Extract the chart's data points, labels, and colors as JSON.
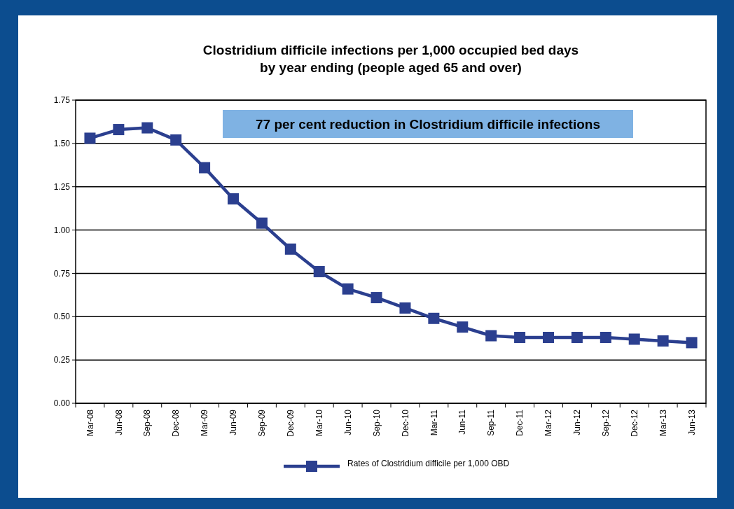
{
  "chart_data": {
    "type": "line",
    "title": "Clostridium difficile infections per 1,000 occupied bed days",
    "subtitle": "by year ending (people aged 65 and over)",
    "categories": [
      "Mar-08",
      "Jun-08",
      "Sep-08",
      "Dec-08",
      "Mar-09",
      "Jun-09",
      "Sep-09",
      "Dec-09",
      "Mar-10",
      "Jun-10",
      "Sep-10",
      "Dec-10",
      "Mar-11",
      "Jun-11",
      "Sep-11",
      "Dec-11",
      "Mar-12",
      "Jun-12",
      "Sep-12",
      "Dec-12",
      "Mar-13",
      "Jun-13"
    ],
    "series": [
      {
        "name": "Rates of Clostridium difficile per 1,000 OBD",
        "color": "#2b3f8f",
        "values": [
          1.53,
          1.58,
          1.59,
          1.52,
          1.36,
          1.18,
          1.04,
          0.89,
          0.76,
          0.66,
          0.61,
          0.55,
          0.49,
          0.44,
          0.39,
          0.38,
          0.38,
          0.38,
          0.38,
          0.37,
          0.36,
          0.35
        ]
      }
    ],
    "ylim": [
      0,
      1.75
    ],
    "yticks": [
      {
        "value": 0,
        "label": "0.00"
      },
      {
        "value": 0.25,
        "label": "0.25"
      },
      {
        "value": 0.5,
        "label": "0.50"
      },
      {
        "value": 0.75,
        "label": "0.75"
      },
      {
        "value": 1,
        "label": "1.00"
      },
      {
        "value": 1.25,
        "label": "1.25"
      },
      {
        "value": 1.5,
        "label": "1.50"
      },
      {
        "value": 1.75,
        "label": "1.75"
      }
    ],
    "grid": "y",
    "legend": "bottom",
    "marker": "square",
    "line_style": "solid",
    "annotations": [
      "77 per cent reduction in Clostridium difficile infections"
    ]
  }
}
